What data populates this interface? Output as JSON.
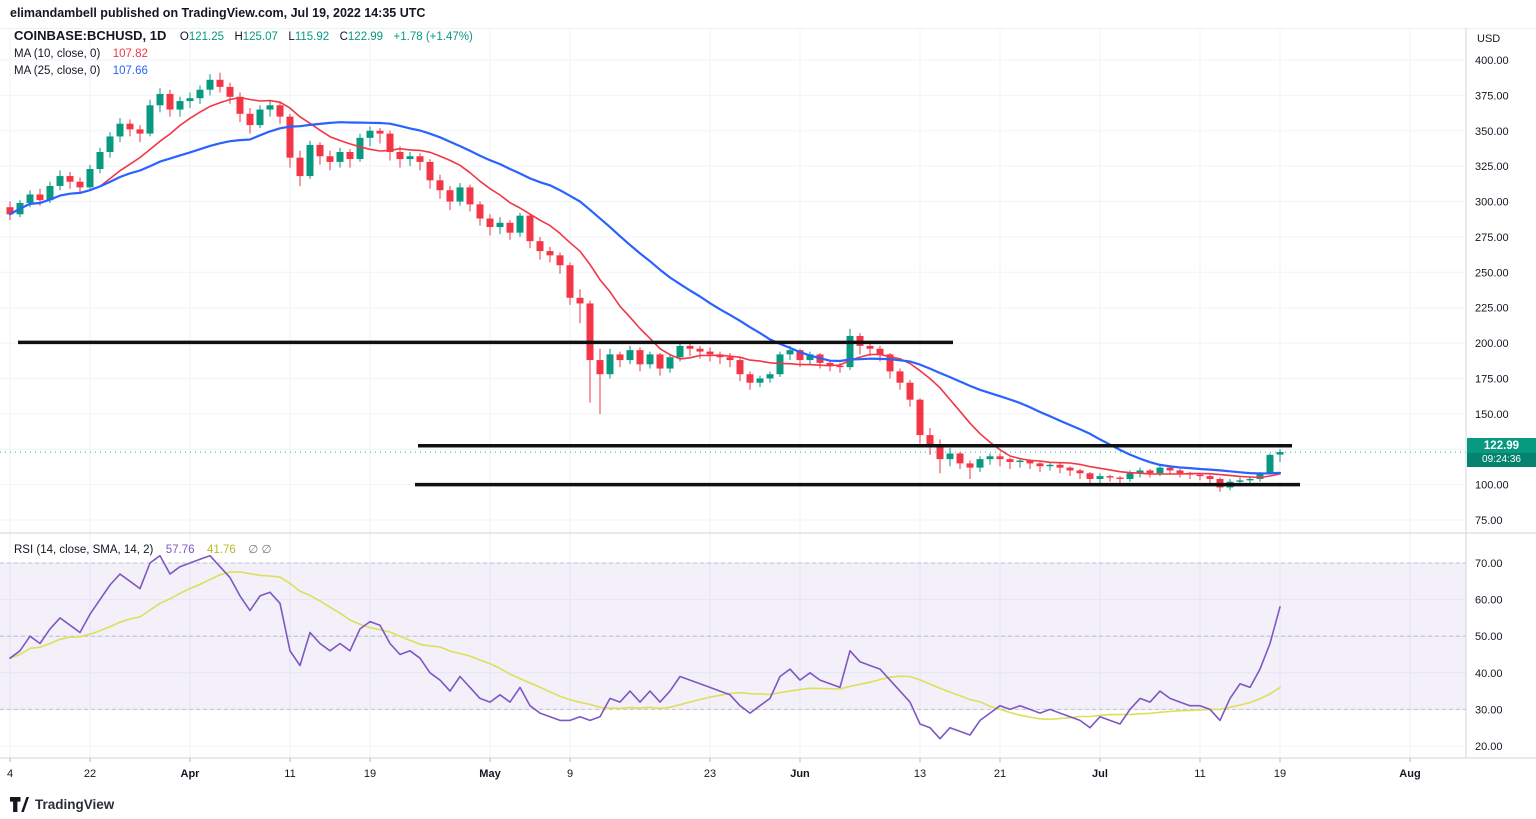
{
  "header": {
    "attribution": "elimandambell published on TradingView.com, Jul 19, 2022 14:35 UTC"
  },
  "main_legend": {
    "symbol": "COINBASE:BCHUSD, 1D",
    "ohlc": [
      {
        "k": "O",
        "v": "121.25"
      },
      {
        "k": "H",
        "v": "125.07"
      },
      {
        "k": "L",
        "v": "115.92"
      },
      {
        "k": "C",
        "v": "122.99"
      }
    ],
    "change": "+1.78 (+1.47%)",
    "ma10_label": "MA (10, close, 0)",
    "ma10_value": "107.82",
    "ma25_label": "MA (25, close, 0)",
    "ma25_value": "107.66"
  },
  "rsi_legend": {
    "label": "RSI (14, close, SMA, 14, 2)",
    "rsi_value": "57.76",
    "ma_value": "41.76",
    "extra": "∅ ∅"
  },
  "price_axis": {
    "currency": "USD",
    "ticks": [
      "400.00",
      "375.00",
      "350.00",
      "325.00",
      "300.00",
      "275.00",
      "250.00",
      "225.00",
      "200.00",
      "175.00",
      "150.00",
      "125.00",
      "100.00",
      "75.00"
    ],
    "last_price": "122.99",
    "countdown": "09:24:36"
  },
  "rsi_axis": {
    "ticks": [
      "70.00",
      "60.00",
      "50.00",
      "40.00",
      "30.00",
      "20.00"
    ]
  },
  "footer": {
    "brand": "TradingView"
  },
  "colors": {
    "up": "#089981",
    "down": "#F23645",
    "ma10": "#F23645",
    "ma25": "#2962FF",
    "rsi": "#7E57C2",
    "rsi_ma": "#DDDF5A",
    "rsi_ma_text": "#B7BD2B",
    "level": "#101010",
    "grid": "#F0F3FA",
    "separator": "#D1D4DC",
    "band_fill": "rgba(126,87,194,0.09)",
    "band_line": "#9B9EB0",
    "axis_text": "#131722",
    "muted_text": "#787B86",
    "last_price_bg": "#089981"
  },
  "chart_data": {
    "type": "candlestick",
    "title": "COINBASE:BCHUSD, 1D",
    "symbol": "COINBASE:BCHUSD",
    "interval": "1D",
    "x_start_date": "2022-03-14",
    "x_end_date": "2022-07-19",
    "ylabel": "USD",
    "price_range": [
      75,
      400
    ],
    "grid": true,
    "last_price": 122.99,
    "candles_ohlc": [
      [
        296,
        300,
        287,
        291
      ],
      [
        291,
        301,
        289,
        299
      ],
      [
        299,
        308,
        296,
        305
      ],
      [
        305,
        309,
        297,
        301
      ],
      [
        301,
        314,
        299,
        311
      ],
      [
        311,
        322,
        308,
        318
      ],
      [
        318,
        321,
        309,
        314
      ],
      [
        314,
        317,
        306,
        310
      ],
      [
        310,
        326,
        308,
        323
      ],
      [
        323,
        338,
        320,
        335
      ],
      [
        335,
        349,
        331,
        346
      ],
      [
        346,
        359,
        342,
        355
      ],
      [
        355,
        358,
        346,
        351
      ],
      [
        351,
        354,
        342,
        348
      ],
      [
        348,
        372,
        346,
        368
      ],
      [
        368,
        380,
        363,
        376
      ],
      [
        376,
        379,
        360,
        365
      ],
      [
        365,
        374,
        360,
        371
      ],
      [
        371,
        377,
        366,
        373
      ],
      [
        373,
        382,
        369,
        379
      ],
      [
        379,
        390,
        375,
        386
      ],
      [
        386,
        391,
        377,
        381
      ],
      [
        381,
        384,
        369,
        374
      ],
      [
        374,
        377,
        356,
        362
      ],
      [
        362,
        366,
        348,
        354
      ],
      [
        354,
        368,
        352,
        365
      ],
      [
        365,
        371,
        360,
        368
      ],
      [
        368,
        370,
        355,
        360
      ],
      [
        360,
        362,
        324,
        331
      ],
      [
        331,
        336,
        311,
        318
      ],
      [
        318,
        343,
        316,
        340
      ],
      [
        340,
        342,
        326,
        332
      ],
      [
        332,
        336,
        322,
        328
      ],
      [
        328,
        338,
        324,
        335
      ],
      [
        335,
        337,
        324,
        330
      ],
      [
        330,
        348,
        328,
        345
      ],
      [
        345,
        353,
        339,
        350
      ],
      [
        350,
        352,
        341,
        348
      ],
      [
        348,
        350,
        329,
        335
      ],
      [
        335,
        339,
        324,
        330
      ],
      [
        330,
        335,
        325,
        332
      ],
      [
        332,
        334,
        322,
        328
      ],
      [
        328,
        330,
        309,
        315
      ],
      [
        315,
        319,
        302,
        308
      ],
      [
        308,
        311,
        294,
        300
      ],
      [
        300,
        313,
        297,
        310
      ],
      [
        310,
        312,
        293,
        298
      ],
      [
        298,
        300,
        283,
        288
      ],
      [
        288,
        291,
        276,
        282
      ],
      [
        282,
        289,
        277,
        285
      ],
      [
        285,
        287,
        273,
        278
      ],
      [
        278,
        292,
        275,
        290
      ],
      [
        290,
        291,
        267,
        272
      ],
      [
        272,
        275,
        259,
        265
      ],
      [
        265,
        268,
        257,
        262
      ],
      [
        262,
        264,
        249,
        255
      ],
      [
        255,
        257,
        227,
        232
      ],
      [
        232,
        238,
        214,
        228
      ],
      [
        228,
        230,
        158,
        188
      ],
      [
        188,
        196,
        150,
        178
      ],
      [
        178,
        196,
        175,
        192
      ],
      [
        192,
        194,
        183,
        188
      ],
      [
        188,
        198,
        185,
        195
      ],
      [
        195,
        197,
        180,
        185
      ],
      [
        185,
        194,
        182,
        192
      ],
      [
        192,
        193,
        177,
        182
      ],
      [
        182,
        192,
        179,
        190
      ],
      [
        190,
        201,
        187,
        198
      ],
      [
        198,
        200,
        191,
        196
      ],
      [
        196,
        198,
        189,
        194
      ],
      [
        194,
        197,
        187,
        192
      ],
      [
        192,
        194,
        185,
        190
      ],
      [
        190,
        193,
        183,
        188
      ],
      [
        188,
        190,
        173,
        178
      ],
      [
        178,
        180,
        167,
        172
      ],
      [
        172,
        177,
        169,
        175
      ],
      [
        175,
        180,
        172,
        178
      ],
      [
        178,
        194,
        176,
        192
      ],
      [
        192,
        198,
        188,
        195
      ],
      [
        195,
        196,
        183,
        188
      ],
      [
        188,
        194,
        185,
        192
      ],
      [
        192,
        193,
        182,
        186
      ],
      [
        186,
        188,
        180,
        184
      ],
      [
        184,
        186,
        179,
        183
      ],
      [
        183,
        210,
        181,
        205
      ],
      [
        205,
        207,
        192,
        198
      ],
      [
        198,
        201,
        191,
        196
      ],
      [
        196,
        198,
        187,
        192
      ],
      [
        192,
        193,
        175,
        180
      ],
      [
        180,
        182,
        167,
        172
      ],
      [
        172,
        174,
        155,
        160
      ],
      [
        160,
        161,
        129,
        135
      ],
      [
        135,
        140,
        121,
        128
      ],
      [
        128,
        132,
        108,
        118
      ],
      [
        118,
        126,
        113,
        122
      ],
      [
        122,
        123,
        111,
        115
      ],
      [
        115,
        117,
        104,
        112
      ],
      [
        112,
        120,
        109,
        118
      ],
      [
        118,
        122,
        114,
        120
      ],
      [
        120,
        122,
        113,
        118
      ],
      [
        118,
        119,
        111,
        116
      ],
      [
        116,
        119,
        112,
        117
      ],
      [
        117,
        118,
        111,
        115
      ],
      [
        115,
        116,
        109,
        113
      ],
      [
        113,
        116,
        110,
        114
      ],
      [
        114,
        115,
        108,
        112
      ],
      [
        112,
        113,
        106,
        110
      ],
      [
        110,
        111,
        104,
        108
      ],
      [
        108,
        109,
        100,
        104
      ],
      [
        104,
        108,
        101,
        106
      ],
      [
        106,
        107,
        102,
        105
      ],
      [
        105,
        106,
        101,
        104
      ],
      [
        104,
        110,
        102,
        108
      ],
      [
        108,
        112,
        105,
        110
      ],
      [
        110,
        111,
        105,
        108
      ],
      [
        108,
        114,
        106,
        112
      ],
      [
        112,
        113,
        107,
        110
      ],
      [
        110,
        111,
        105,
        108
      ],
      [
        108,
        109,
        104,
        107
      ],
      [
        107,
        108,
        103,
        106
      ],
      [
        106,
        107,
        101,
        104
      ],
      [
        104,
        105,
        95,
        98
      ],
      [
        98,
        104,
        96,
        102
      ],
      [
        102,
        105,
        99,
        103
      ],
      [
        103,
        106,
        100,
        104
      ],
      [
        104,
        109,
        102,
        108
      ],
      [
        108,
        122,
        107,
        121
      ],
      [
        121.25,
        125.07,
        115.92,
        122.99
      ]
    ],
    "overlays": [
      {
        "name": "MA 10",
        "type": "sma",
        "period": 10,
        "color": "#F23645",
        "width": 1.6
      },
      {
        "name": "MA 25",
        "type": "sma",
        "period": 25,
        "color": "#2962FF",
        "width": 2.2
      }
    ],
    "levels": [
      {
        "price": 200.5,
        "from_bar": 0.8,
        "to_bar": 94.3
      },
      {
        "price": 127.5,
        "from_bar": 40.8,
        "to_bar": 128.2
      },
      {
        "price": 100.0,
        "from_bar": 40.5,
        "to_bar": 129.0
      }
    ],
    "rsi_panel": {
      "type": "line",
      "name": "RSI 14",
      "range": [
        20,
        70
      ],
      "bands": [
        70,
        50,
        30
      ],
      "rsi_sma_period": 14,
      "rsi_values": [
        44,
        46,
        50,
        48,
        52,
        55,
        53,
        51,
        56,
        60,
        64,
        67,
        65,
        63,
        70,
        72,
        67,
        69,
        70,
        71,
        72,
        69,
        66,
        61,
        57,
        61,
        62,
        59,
        46,
        42,
        51,
        48,
        46,
        48,
        46,
        52,
        54,
        53,
        48,
        45,
        46,
        44,
        40,
        38,
        35,
        39,
        36,
        33,
        32,
        34,
        32,
        36,
        31,
        29,
        28,
        27,
        27,
        28,
        27,
        28,
        33,
        32,
        35,
        32,
        35,
        32,
        35,
        39,
        38,
        37,
        36,
        35,
        34,
        31,
        29,
        31,
        33,
        39,
        41,
        38,
        40,
        38,
        37,
        36,
        46,
        43,
        42,
        41,
        38,
        35,
        32,
        26,
        25,
        22,
        25,
        24,
        23,
        27,
        29,
        31,
        30,
        31,
        30,
        29,
        30,
        29,
        28,
        27,
        25,
        28,
        27,
        26,
        30,
        33,
        32,
        35,
        33,
        32,
        31,
        31,
        30,
        27,
        33,
        37,
        36,
        41,
        48,
        58
      ]
    },
    "time_ticks": [
      {
        "label": "4",
        "bar": 0
      },
      {
        "label": "22",
        "bar": 8
      },
      {
        "label": "Apr",
        "bar": 18,
        "m": true
      },
      {
        "label": "11",
        "bar": 28
      },
      {
        "label": "19",
        "bar": 36
      },
      {
        "label": "May",
        "bar": 48,
        "m": true
      },
      {
        "label": "9",
        "bar": 56
      },
      {
        "label": "23",
        "bar": 70
      },
      {
        "label": "Jun",
        "bar": 79,
        "m": true
      },
      {
        "label": "13",
        "bar": 91
      },
      {
        "label": "21",
        "bar": 99
      },
      {
        "label": "Jul",
        "bar": 109,
        "m": true
      },
      {
        "label": "11",
        "bar": 119
      },
      {
        "label": "19",
        "bar": 127
      },
      {
        "label": "Aug",
        "bar": 140,
        "m": true
      }
    ]
  }
}
